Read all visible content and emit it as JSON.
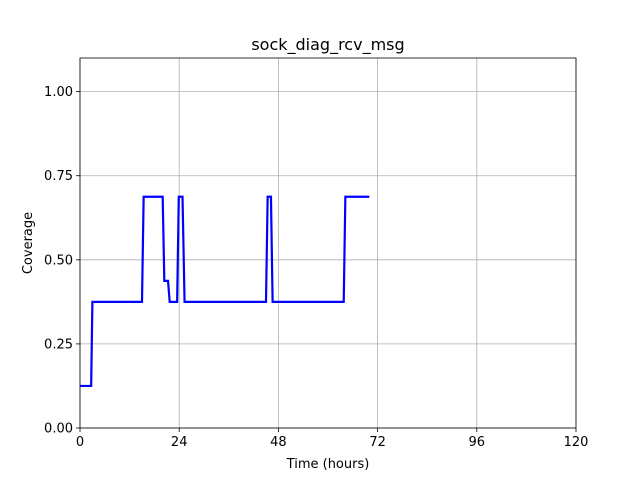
{
  "chart_data": {
    "type": "line",
    "title": "sock_diag_rcv_msg",
    "xlabel": "Time (hours)",
    "ylabel": "Coverage",
    "xlim": [
      0,
      120
    ],
    "ylim": [
      0,
      1.1
    ],
    "xticks": [
      0,
      24,
      48,
      72,
      96,
      120
    ],
    "xtick_labels": [
      "0",
      "24",
      "48",
      "72",
      "96",
      "120"
    ],
    "yticks": [
      0,
      0.25,
      0.5,
      0.75,
      1.0
    ],
    "ytick_labels": [
      "0.00",
      "0.25",
      "0.50",
      "0.75",
      "1.00"
    ],
    "grid": true,
    "series": [
      {
        "color": "#0000ff",
        "x": [
          0,
          2.7,
          3.0,
          15.0,
          15.4,
          20.0,
          20.4,
          21.3,
          21.7,
          23.5,
          23.9,
          24.8,
          25.3,
          45.0,
          45.4,
          46.2,
          46.6,
          63.8,
          64.2,
          70.0
        ],
        "y": [
          0.125,
          0.125,
          0.375,
          0.375,
          0.6875,
          0.6875,
          0.4375,
          0.4375,
          0.375,
          0.375,
          0.6875,
          0.6875,
          0.375,
          0.375,
          0.6875,
          0.6875,
          0.375,
          0.375,
          0.6875,
          0.6875
        ]
      }
    ]
  }
}
